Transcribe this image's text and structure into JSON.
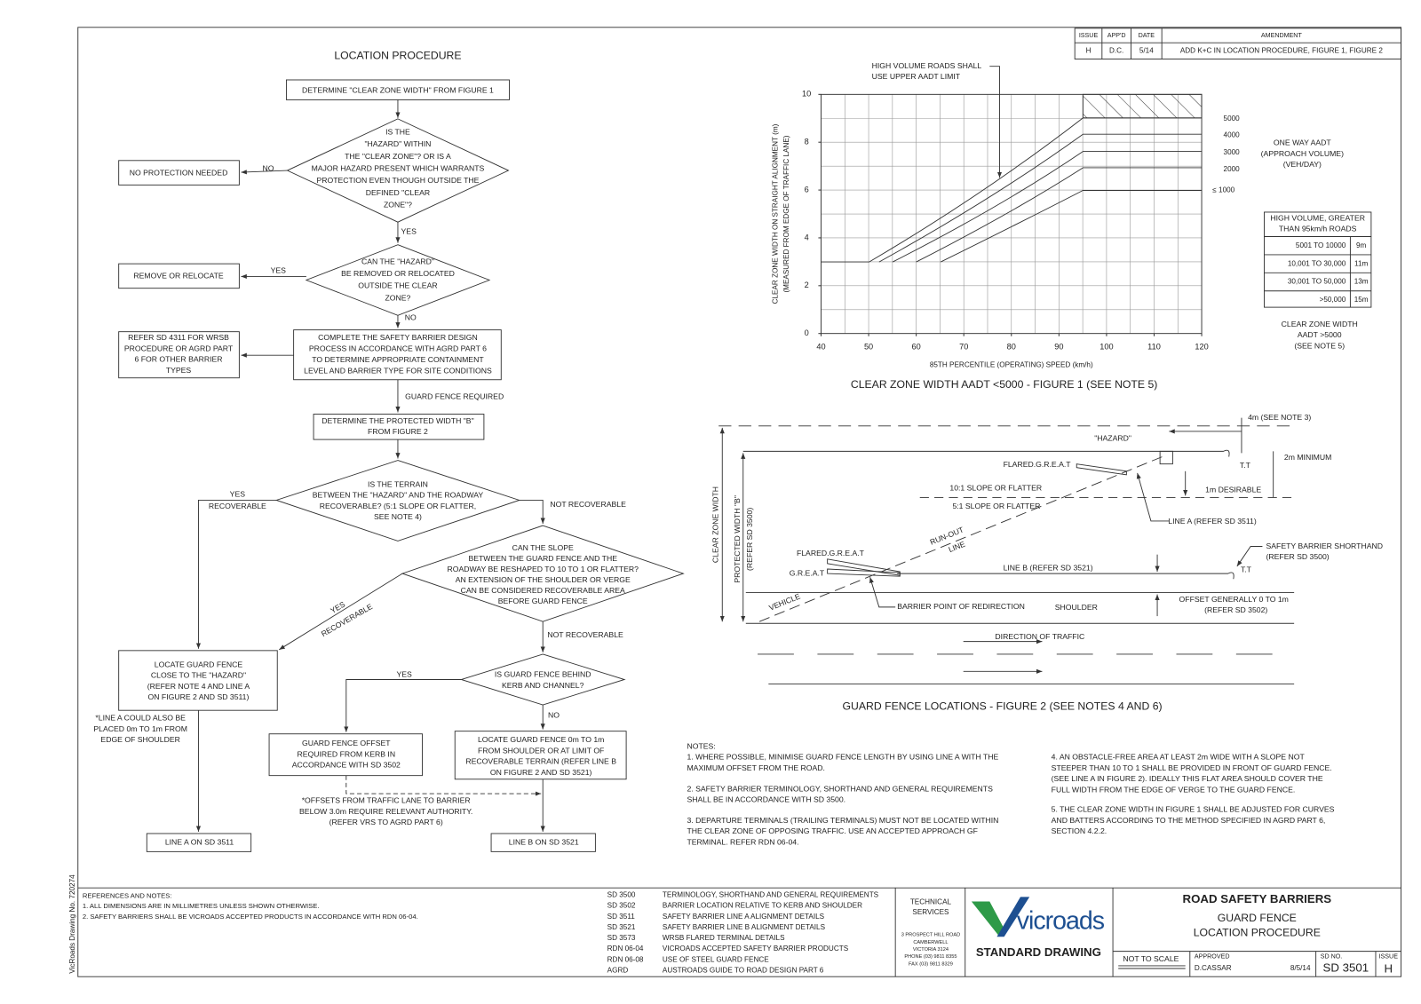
{
  "title": "LOCATION PROCEDURE",
  "revisions": {
    "header": [
      "ISSUE",
      "APP'D",
      "DATE",
      "AMENDMENT"
    ],
    "rows": [
      [
        "H",
        "D.C.",
        "5/14",
        "ADD K+C IN LOCATION PROCEDURE, FIGURE 1, FIGURE 2"
      ]
    ]
  },
  "flowchart": {
    "nodes": [
      [
        "DETERMINE \"CLEAR ZONE WIDTH\" FROM FIGURE 1"
      ],
      [
        "IS THE",
        "\"HAZARD\" WITHIN",
        "THE \"CLEAR ZONE\"? OR IS A",
        "MAJOR HAZARD PRESENT WHICH WARRANTS",
        "PROTECTION EVEN THOUGH OUTSIDE THE",
        "DEFINED \"CLEAR",
        "ZONE\"?"
      ],
      [
        "NO PROTECTION NEEDED"
      ],
      [
        "CAN THE \"HAZARD\"",
        "BE REMOVED OR RELOCATED",
        "OUTSIDE THE CLEAR",
        "ZONE?"
      ],
      [
        "REMOVE OR RELOCATE"
      ],
      [
        "COMPLETE THE SAFETY BARRIER DESIGN",
        "PROCESS IN ACCORDANCE WITH AGRD PART 6",
        "TO DETERMINE APPROPRIATE CONTAINMENT",
        "LEVEL AND BARRIER TYPE FOR SITE CONDITIONS"
      ],
      [
        "REFER SD 4311 FOR WRSB",
        "PROCEDURE OR AGRD PART",
        "6 FOR OTHER BARRIER",
        "TYPES"
      ],
      [
        "DETERMINE THE PROTECTED WIDTH \"B\"",
        "FROM FIGURE 2"
      ],
      [
        "IS THE TERRAIN",
        "BETWEEN THE \"HAZARD\" AND THE ROADWAY",
        "RECOVERABLE? (5:1 SLOPE OR FLATTER,",
        "SEE NOTE 4)"
      ],
      [
        "CAN THE SLOPE",
        "BETWEEN THE GUARD FENCE AND THE",
        "ROADWAY BE RESHAPED TO 10 TO 1 OR FLATTER?",
        "AN EXTENSION OF THE SHOULDER OR VERGE",
        "CAN BE CONSIDERED RECOVERABLE AREA",
        "BEFORE GUARD FENCE"
      ],
      [
        "LOCATE GUARD FENCE",
        "CLOSE TO THE \"HAZARD\"",
        "(REFER NOTE 4 AND LINE A",
        "ON FIGURE 2 AND SD 3511)"
      ],
      [
        "IS GUARD FENCE BEHIND",
        "KERB AND CHANNEL?"
      ],
      [
        "GUARD FENCE OFFSET",
        "REQUIRED FROM KERB IN",
        "ACCORDANCE WITH SD 3502"
      ],
      [
        "LOCATE GUARD FENCE 0m TO 1m",
        "FROM SHOULDER OR AT LIMIT OF",
        "RECOVERABLE TERRAIN (REFER LINE B",
        "ON FIGURE 2 AND SD 3521)"
      ],
      [
        "LINE A ON SD 3511"
      ],
      [
        "LINE B ON SD 3521"
      ]
    ],
    "edge_labels": [
      "NO",
      "YES",
      "YES",
      "NO",
      "GUARD FENCE REQUIRED",
      "YES",
      "RECOVERABLE",
      "NOT RECOVERABLE",
      "YES",
      "RECOVERABLE",
      "NOT RECOVERABLE",
      "YES",
      "NO"
    ],
    "footnotes": [
      [
        "*LINE A COULD ALSO BE",
        "PLACED 0m TO 1m FROM",
        "EDGE OF SHOULDER"
      ],
      [
        "*OFFSETS FROM TRAFFIC LANE TO BARRIER",
        "BELOW 3.0m REQUIRE RELEVANT AUTHORITY.",
        "(REFER VRS TO AGRD PART 6)"
      ]
    ]
  },
  "figure_1": {
    "title": "CLEAR ZONE WIDTH AADT <5000 - FIGURE 1 (SEE NOTE 5)",
    "x_label": "85TH PERCENTILE (OPERATING) SPEED (km/h)",
    "y_label": [
      "CLEAR ZONE WIDTH ON STRAIGHT ALIGNMENT (m)",
      "(MEASURED FROM EDGE OF TRAFFIC LANE)"
    ],
    "xlim": [
      40,
      120
    ],
    "ylim": [
      0,
      10
    ],
    "xticks": [
      40,
      50,
      60,
      70,
      80,
      90,
      100,
      110,
      120
    ],
    "yticks": [
      0,
      2,
      4,
      6,
      8,
      10
    ],
    "grid": true,
    "annotation": [
      "HIGH VOLUME ROADS SHALL",
      "USE UPPER AADT LIMIT"
    ],
    "curve_labels": [
      "5000",
      "4000",
      "3000",
      "2000",
      "≤ 1000"
    ],
    "legend_title": [
      "ONE WAY AADT",
      "(APPROACH VOLUME)",
      "(VEH/DAY)"
    ],
    "table": {
      "header": [
        "HIGH VOLUME, GREATER",
        "THAN 95km/h ROADS"
      ],
      "rows": [
        [
          "5001 TO 10000",
          "9m"
        ],
        [
          "10,001 TO 30,000",
          "11m"
        ],
        [
          "30,001 TO 50,000",
          "13m"
        ],
        [
          ">50,000",
          "15m"
        ]
      ]
    },
    "table_caption": [
      "CLEAR ZONE WIDTH",
      "AADT  >5000",
      "(SEE NOTE 5)"
    ]
  },
  "figure_2": {
    "title": "GUARD FENCE LOCATIONS - FIGURE 2 (SEE NOTES 4 AND 6)",
    "labels": [
      "\"HAZARD\"",
      "FLARED.G.R.E.A.T",
      "T.T",
      "2m MINIMUM",
      "4m (SEE NOTE 3)",
      "10:1 SLOPE OR FLATTER",
      "5:1 SLOPE OR FLATTER",
      "1m DESIRABLE",
      "LINE A (REFER SD 3511)",
      "RUN-OUT",
      "LINE",
      "FLARED.G.R.E.A.T",
      "G.R.E.A.T",
      "LINE B (REFER SD 3521)",
      "T.T",
      "SAFETY BARRIER SHORTHAND",
      "(REFER SD 3500)",
      "VEHICLE",
      "BARRIER POINT OF REDIRECTION",
      "SHOULDER",
      "OFFSET GENERALLY 0 TO 1m",
      "(REFER SD 3502)",
      "DIRECTION OF TRAFFIC",
      "CLEAR ZONE WIDTH",
      "PROTECTED WIDTH \"B\"",
      "(REFER SD 3500)"
    ]
  },
  "notes": {
    "heading": "NOTES:",
    "items": [
      [
        "1. WHERE POSSIBLE, MINIMISE GUARD FENCE LENGTH BY USING LINE A WITH THE",
        "    MAXIMUM OFFSET FROM THE ROAD."
      ],
      [
        "2. SAFETY BARRIER TERMINOLOGY, SHORTHAND AND GENERAL REQUIREMENTS",
        "    SHALL BE IN ACCORDANCE WITH SD 3500."
      ],
      [
        "3. DEPARTURE TERMINALS (TRAILING TERMINALS) MUST NOT BE LOCATED WITHIN",
        "    THE CLEAR ZONE OF OPPOSING TRAFFIC. USE AN ACCEPTED APPROACH GF",
        "    TERMINAL. REFER RDN 06-04."
      ],
      [
        "4. AN OBSTACLE-FREE AREA AT LEAST 2m WIDE WITH A SLOPE NOT",
        "    STEEPER THAN 10 TO 1 SHALL BE PROVIDED IN FRONT OF GUARD FENCE.",
        "    (SEE LINE  A IN FIGURE 2). IDEALLY THIS FLAT AREA SHOULD COVER THE",
        "    FULL WIDTH FROM THE EDGE OF VERGE TO THE GUARD FENCE."
      ],
      [
        "5. THE CLEAR ZONE WIDTH IN FIGURE 1 SHALL BE ADJUSTED FOR CURVES",
        "    AND BATTERS ACCORDING TO THE METHOD SPECIFIED IN AGRD PART 6,",
        "    SECTION 4.2.2."
      ]
    ]
  },
  "title_block": {
    "references": [
      "REFERENCES AND NOTES:",
      "1. ALL DIMENSIONS ARE IN MILLIMETRES UNLESS SHOWN OTHERWISE.",
      "2. SAFETY BARRIERS SHALL BE VICROADS ACCEPTED PRODUCTS IN ACCORDANCE WITH RDN 06-04."
    ],
    "standards": [
      [
        "SD 3500",
        "TERMINOLOGY, SHORTHAND AND GENERAL REQUIREMENTS"
      ],
      [
        "SD 3502",
        "BARRIER LOCATION RELATIVE TO KERB AND SHOULDER"
      ],
      [
        "SD 3511",
        "SAFETY BARRIER LINE A ALIGNMENT DETAILS"
      ],
      [
        "SD 3521",
        "SAFETY BARRIER LINE B ALIGNMENT DETAILS"
      ],
      [
        "SD 3573",
        "WRSB FLARED TERMINAL DETAILS"
      ],
      [
        "RDN 06-04",
        "VICROADS ACCEPTED SAFETY BARRIER PRODUCTS"
      ],
      [
        "RDN 06-08",
        "USE OF STEEL GUARD FENCE"
      ],
      [
        "AGRD",
        "AUSTROADS GUIDE TO ROAD DESIGN PART 6"
      ]
    ],
    "issuer": [
      "TECHNICAL",
      "SERVICES"
    ],
    "address": [
      "3 PROSPECT HILL ROAD",
      "CAMBERWELL",
      "VICTORIA  3124",
      "PHONE (03) 9811 8355",
      "FAX  (03) 9811 8329"
    ],
    "logo": "vicroads",
    "standard_drawing": "STANDARD DRAWING",
    "drawing_title": [
      "ROAD SAFETY BARRIERS",
      "GUARD FENCE",
      "LOCATION PROCEDURE"
    ],
    "scale": "NOT TO SCALE",
    "approved_label": "APPROVED",
    "approved_by": "D.CASSAR",
    "approved_date": "8/5/14",
    "sd_no_label": "SD NO.",
    "sd_no": "SD 3501",
    "issue_label": "ISSUE",
    "issue": "H",
    "drawing_number": "VicRoads Drawing No. 720274"
  }
}
